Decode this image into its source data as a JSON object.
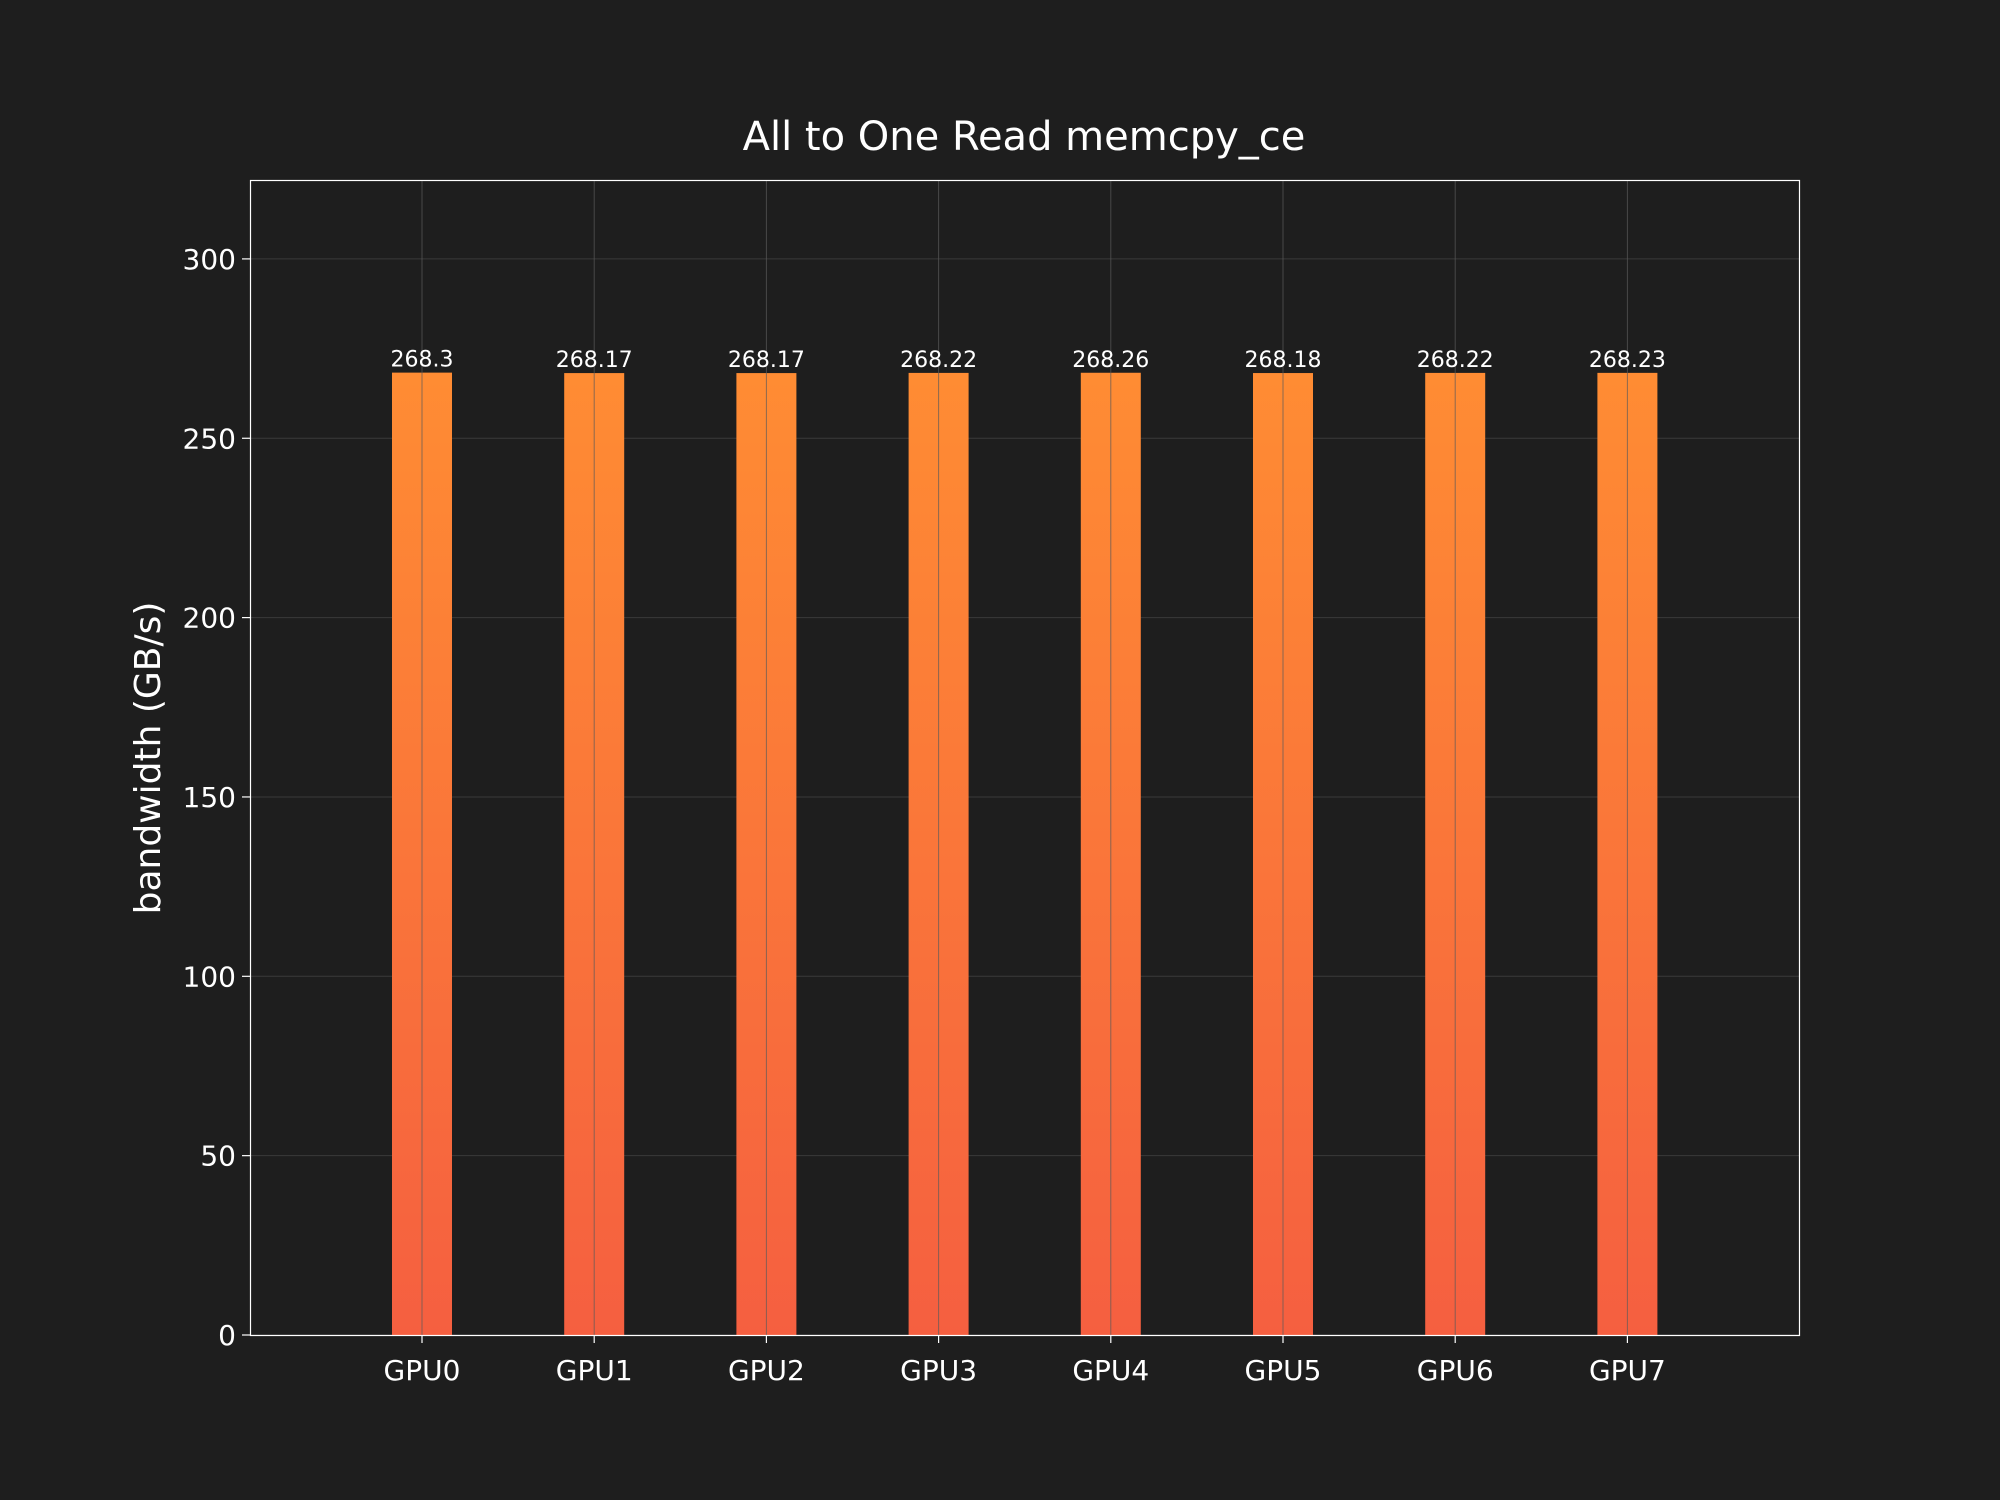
{
  "chart_data": {
    "type": "bar",
    "title": "All to One Read memcpy_ce",
    "xlabel": "",
    "ylabel": "bandwidth (GB/s)",
    "categories": [
      "GPU0",
      "GPU1",
      "GPU2",
      "GPU3",
      "GPU4",
      "GPU5",
      "GPU6",
      "GPU7"
    ],
    "values": [
      268.3,
      268.17,
      268.17,
      268.22,
      268.26,
      268.18,
      268.22,
      268.23
    ],
    "value_labels": [
      "268.3",
      "268.17",
      "268.17",
      "268.22",
      "268.26",
      "268.18",
      "268.22",
      "268.23"
    ],
    "ylim": [
      0,
      322
    ],
    "yticks": [
      0,
      50,
      100,
      150,
      200,
      250,
      300
    ],
    "ytick_labels": [
      "0",
      "50",
      "100",
      "150",
      "200",
      "250",
      "300"
    ],
    "grid": true,
    "legend": "none",
    "colors": {
      "background": "#1e1e1e",
      "bar_top": "#ff8c33",
      "bar_bottom": "#f55f40",
      "axes_edge": "#ffffff",
      "grid": "#3a3a3a",
      "text": "#ffffff"
    }
  }
}
